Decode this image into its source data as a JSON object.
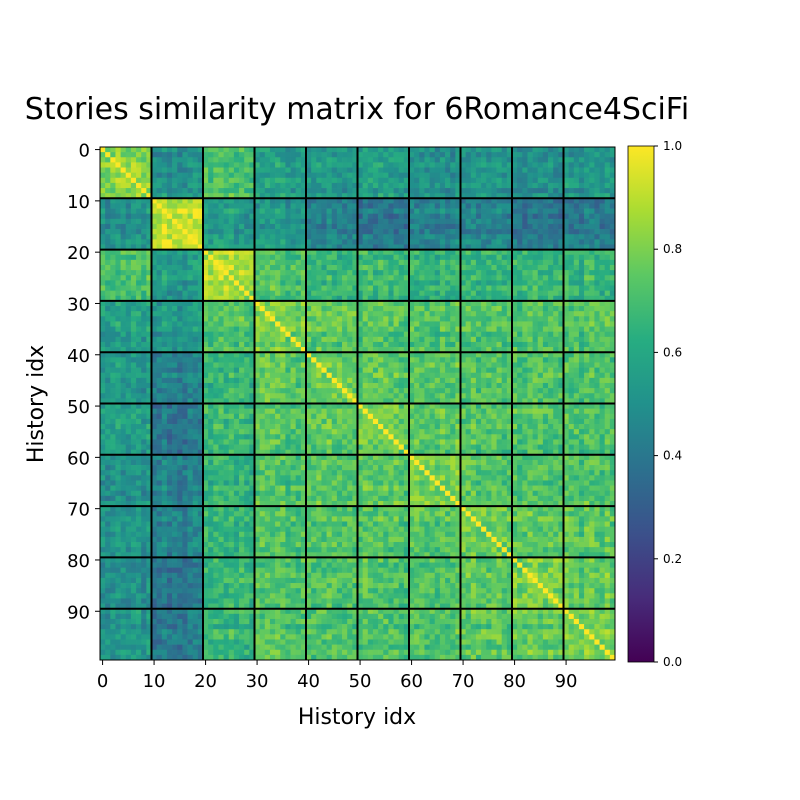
{
  "chart_data": {
    "type": "heatmap",
    "title": "Stories similarity matrix for 6Romance4SciFi",
    "xlabel": "History idx",
    "ylabel": "History idx",
    "n": 100,
    "xticks": [
      0,
      10,
      20,
      30,
      40,
      50,
      60,
      70,
      80,
      90
    ],
    "yticks": [
      0,
      10,
      20,
      30,
      40,
      50,
      60,
      70,
      80,
      90
    ],
    "block_boundaries": [
      9.5,
      19.5,
      29.5,
      39.5,
      49.5,
      59.5,
      69.5,
      79.5,
      89.5
    ],
    "grid": false,
    "colormap": "viridis",
    "colorbar": {
      "range": [
        0.0,
        1.0
      ],
      "ticks": [
        0.0,
        0.2,
        0.4,
        0.6,
        0.8,
        1.0
      ],
      "tick_labels": [
        "0.0",
        "0.2",
        "0.4",
        "0.6",
        "0.8",
        "1.0"
      ]
    },
    "approx_block_means": [
      [
        0.8,
        0.5,
        0.7,
        0.55,
        0.52,
        0.55,
        0.5,
        0.52,
        0.5,
        0.52
      ],
      [
        0.5,
        0.92,
        0.55,
        0.52,
        0.45,
        0.4,
        0.45,
        0.45,
        0.4,
        0.42
      ],
      [
        0.7,
        0.55,
        0.88,
        0.72,
        0.66,
        0.68,
        0.66,
        0.66,
        0.68,
        0.66
      ],
      [
        0.55,
        0.52,
        0.72,
        0.78,
        0.75,
        0.72,
        0.72,
        0.72,
        0.72,
        0.72
      ],
      [
        0.52,
        0.45,
        0.66,
        0.75,
        0.78,
        0.75,
        0.74,
        0.72,
        0.72,
        0.72
      ],
      [
        0.55,
        0.4,
        0.68,
        0.72,
        0.75,
        0.78,
        0.75,
        0.72,
        0.72,
        0.72
      ],
      [
        0.5,
        0.45,
        0.66,
        0.72,
        0.74,
        0.75,
        0.8,
        0.74,
        0.72,
        0.72
      ],
      [
        0.52,
        0.45,
        0.66,
        0.72,
        0.72,
        0.72,
        0.74,
        0.78,
        0.75,
        0.74
      ],
      [
        0.5,
        0.4,
        0.68,
        0.72,
        0.72,
        0.72,
        0.72,
        0.75,
        0.8,
        0.76
      ],
      [
        0.52,
        0.42,
        0.66,
        0.72,
        0.72,
        0.72,
        0.72,
        0.74,
        0.76,
        0.8
      ]
    ]
  }
}
